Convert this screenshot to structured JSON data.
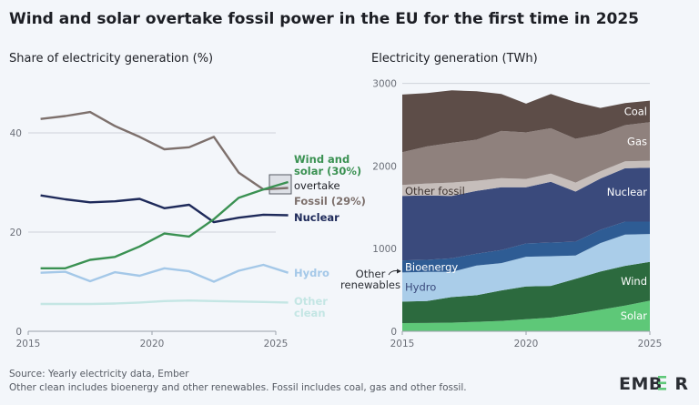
{
  "title": "Wind and solar overtake fossil power in the EU for the first time in 2025",
  "footer": {
    "source": "Source: Yearly electricity data, Ember",
    "note": "Other clean includes bioenergy and other renewables. Fossil includes coal, gas and other fossil.",
    "logo": "EMBER"
  },
  "chart_data": [
    {
      "type": "line",
      "title": "Share of electricity generation (%)",
      "x": [
        2015,
        2016,
        2017,
        2018,
        2019,
        2020,
        2021,
        2022,
        2023,
        2024,
        2025
      ],
      "xticks": [
        "2015",
        "2020",
        "2025"
      ],
      "yticks": [
        "0",
        "20",
        "40"
      ],
      "ylim": [
        0,
        45
      ],
      "grid": true,
      "series": [
        {
          "name": "Fossil (29%)",
          "color": "#7d706c",
          "values": [
            42.8,
            43.4,
            44.2,
            41.4,
            39.2,
            36.7,
            37.1,
            39.2,
            32.0,
            28.6,
            28.9
          ]
        },
        {
          "name": "Nuclear",
          "color": "#1e2a5a",
          "values": [
            27.4,
            26.6,
            26.0,
            26.2,
            26.7,
            24.8,
            25.5,
            22.0,
            22.9,
            23.5,
            23.4
          ]
        },
        {
          "name": "Wind and solar (30%)",
          "name_lines": [
            "Wind and",
            "solar (30%)"
          ],
          "color": "#3a9152",
          "values": [
            12.7,
            12.7,
            14.4,
            15.0,
            17.1,
            19.7,
            19.1,
            22.6,
            26.9,
            28.6,
            30.1
          ]
        },
        {
          "name": "Hydro",
          "color": "#a4c8e8",
          "values": [
            11.8,
            12.0,
            10.1,
            11.9,
            11.2,
            12.7,
            12.1,
            10.0,
            12.2,
            13.4,
            11.8
          ]
        },
        {
          "name": "Other clean",
          "name_lines": [
            "Other",
            "clean"
          ],
          "color": "#c4e6e4",
          "values": [
            5.5,
            5.5,
            5.5,
            5.6,
            5.8,
            6.1,
            6.2,
            6.1,
            6.0,
            5.9,
            5.8
          ]
        }
      ],
      "annotation": "overtake"
    },
    {
      "type": "area",
      "stacked": true,
      "title": "Electricity generation (TWh)",
      "x": [
        2015,
        2016,
        2017,
        2018,
        2019,
        2020,
        2021,
        2022,
        2023,
        2024,
        2025
      ],
      "xticks": [
        "2015",
        "2020",
        "2025"
      ],
      "yticks": [
        "0",
        "1000",
        "2000",
        "3000"
      ],
      "ylim": [
        0,
        3000
      ],
      "grid": true,
      "series": [
        {
          "name": "Solar",
          "color": "#5ec878",
          "label_color": "#ffffff",
          "values": [
            99,
            100,
            105,
            115,
            125,
            147,
            165,
            209,
            260,
            312,
            370
          ]
        },
        {
          "name": "Wind",
          "color": "#2c6a3e",
          "label_color": "#ffffff",
          "values": [
            260,
            267,
            309,
            321,
            370,
            396,
            385,
            425,
            462,
            480,
            470
          ]
        },
        {
          "name": "Hydro",
          "color": "#aacde9",
          "label_color": "#3a4a7c",
          "values": [
            352,
            352,
            305,
            360,
            330,
            359,
            359,
            283,
            345,
            378,
            337
          ]
        },
        {
          "name": "Bioenergy",
          "color": "#2e5c94",
          "label_color": "#ffffff",
          "values": [
            147,
            146,
            165,
            143,
            158,
            161,
            165,
            168,
            161,
            157,
            150
          ]
        },
        {
          "name": "Nuclear",
          "color": "#3a4a7c",
          "label_color": "#ffffff",
          "values": [
            781,
            778,
            755,
            759,
            759,
            679,
            734,
            605,
            620,
            646,
            653
          ]
        },
        {
          "name": "Other fossil",
          "color": "#c6bebb",
          "label_color": "#3d3330",
          "values": [
            132,
            146,
            161,
            124,
            110,
            102,
            99,
            110,
            88,
            84,
            84
          ]
        },
        {
          "name": "Gas",
          "color": "#8f817d",
          "label_color": "#ffffff",
          "values": [
            396,
            448,
            481,
            496,
            572,
            562,
            550,
            529,
            451,
            437,
            466
          ]
        },
        {
          "name": "Coal",
          "color": "#5d4d48",
          "label_color": "#ffffff",
          "values": [
            697,
            645,
            634,
            586,
            447,
            348,
            414,
            443,
            316,
            267,
            261
          ]
        }
      ],
      "annotation": {
        "lines": [
          "Other",
          "renewables"
        ]
      }
    }
  ]
}
